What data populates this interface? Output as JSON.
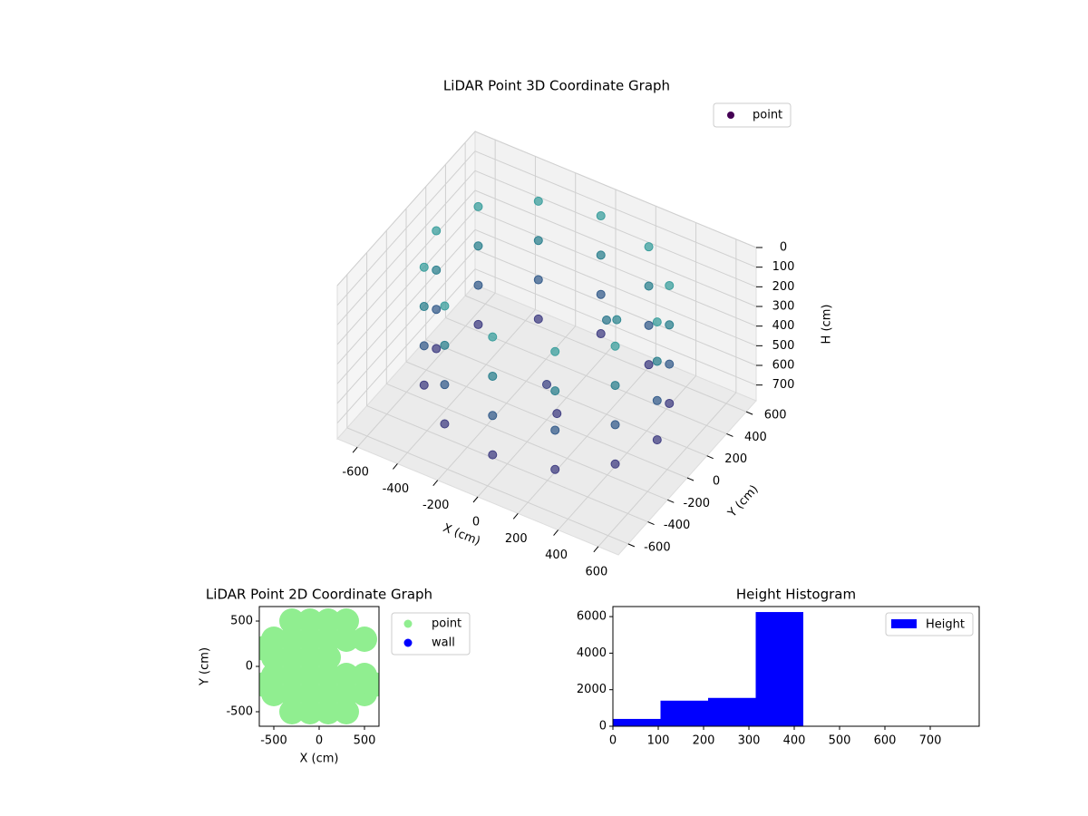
{
  "chart_data": [
    {
      "type": "scatter3d",
      "title": "LiDAR Point 3D Coordinate Graph",
      "xlabel": "X (cm)",
      "ylabel": "Y (cm)",
      "zlabel": "H (cm)",
      "xlim": [
        -700,
        700
      ],
      "ylim": [
        -700,
        700
      ],
      "zlim": [
        0,
        780
      ],
      "zinvert": true,
      "xticks": [
        -600,
        -400,
        -200,
        0,
        200,
        400,
        600
      ],
      "yticks": [
        -600,
        -400,
        -200,
        0,
        200,
        400,
        600
      ],
      "zticks": [
        0,
        100,
        200,
        300,
        400,
        500,
        600,
        700
      ],
      "colormap": [
        "#472c7a",
        "#3b528b",
        "#2c7f8e",
        "#3fa7a0"
      ],
      "legend": "upper right",
      "series": [
        {
          "name": "point",
          "color": "#440154",
          "x": [
            550,
            476,
            275,
            0,
            -275,
            -476,
            -550,
            -476,
            -275,
            0,
            275,
            476,
            550,
            476,
            275,
            0,
            -275,
            -476,
            -550,
            -476,
            -275,
            0,
            275,
            476,
            550,
            476,
            275,
            0,
            -275,
            -476,
            -550,
            -476,
            -275,
            0,
            275,
            476,
            550,
            476,
            275,
            0,
            -275,
            -476,
            -550,
            -476,
            -275,
            0,
            275,
            476,
            0,
            100,
            200,
            300
          ],
          "y": [
            0,
            275,
            476,
            550,
            476,
            275,
            0,
            -275,
            -476,
            -550,
            -476,
            -275,
            0,
            275,
            476,
            550,
            476,
            275,
            0,
            -275,
            -476,
            -550,
            -476,
            -275,
            0,
            275,
            476,
            550,
            476,
            275,
            0,
            -275,
            -476,
            -550,
            -476,
            -275,
            0,
            275,
            476,
            550,
            476,
            275,
            0,
            -275,
            -476,
            -550,
            -476,
            -275,
            0,
            -100,
            200,
            100
          ],
          "z": [
            50,
            50,
            50,
            50,
            50,
            50,
            50,
            50,
            50,
            50,
            50,
            50,
            250,
            250,
            250,
            250,
            250,
            250,
            250,
            250,
            250,
            250,
            250,
            250,
            450,
            450,
            450,
            450,
            450,
            450,
            450,
            450,
            450,
            450,
            450,
            450,
            650,
            650,
            650,
            650,
            650,
            650,
            650,
            650,
            650,
            650,
            650,
            650,
            600,
            650,
            300,
            200
          ]
        }
      ]
    },
    {
      "type": "scatter",
      "title": "LiDAR Point 2D Coordinate Graph",
      "xlabel": "X (cm)",
      "ylabel": "Y (cm)",
      "xlim": [
        -660,
        660
      ],
      "ylim": [
        -660,
        660
      ],
      "xticks": [
        -500,
        0,
        500
      ],
      "yticks": [
        -500,
        0,
        500
      ],
      "legend": "outside right",
      "series": [
        {
          "name": "point",
          "color": "#90ee90",
          "x": [
            -300,
            -100,
            100,
            300,
            -500,
            -300,
            -100,
            100,
            300,
            500,
            -500,
            -300,
            -100,
            100,
            -500,
            -300,
            -100,
            100,
            300,
            500,
            -500,
            -300,
            -100,
            100,
            300,
            500,
            -300,
            -100,
            100,
            300,
            -600,
            600,
            -600
          ],
          "y": [
            500,
            500,
            500,
            500,
            300,
            300,
            300,
            300,
            300,
            300,
            100,
            100,
            100,
            100,
            -100,
            -100,
            -100,
            -100,
            -100,
            -100,
            -300,
            -300,
            -300,
            -300,
            -300,
            -300,
            -500,
            -500,
            -500,
            -500,
            -200,
            -200,
            200
          ]
        },
        {
          "name": "wall",
          "color": "#0000ff",
          "x": [],
          "y": []
        }
      ]
    },
    {
      "type": "histogram",
      "title": "Height Histogram",
      "name": "Height",
      "color": "#0000ff",
      "legend": "upper right",
      "bins": [
        0,
        105,
        210,
        315,
        420,
        525,
        630,
        735
      ],
      "counts": [
        400,
        1400,
        1550,
        6250,
        0,
        0,
        0
      ],
      "xlim": [
        0,
        808
      ],
      "ylim": [
        0,
        6550
      ],
      "xticks": [
        0,
        100,
        200,
        300,
        400,
        500,
        600,
        700
      ],
      "yticks": [
        0,
        2000,
        4000,
        6000
      ]
    }
  ]
}
